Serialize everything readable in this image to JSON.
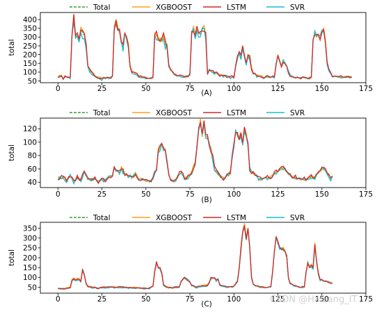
{
  "watermark": "CSDN @HaiLang_IT",
  "chart_data": [
    {
      "type": "line",
      "caption": "(A)",
      "ylabel": "total",
      "xlim": [
        -10,
        175
      ],
      "ylim": [
        40,
        440
      ],
      "xticks": [
        0,
        25,
        50,
        75,
        100,
        125,
        150,
        175
      ],
      "yticks": [
        50,
        100,
        150,
        200,
        250,
        300,
        350,
        400
      ],
      "legend": "top-center",
      "series": [
        {
          "name": "Total",
          "color": "#2ca02c",
          "dash": "4,2"
        },
        {
          "name": "XGBOOST",
          "color": "#ff9f1c",
          "dash": ""
        },
        {
          "name": "LSTM",
          "color": "#d62728",
          "dash": ""
        },
        {
          "name": "SVR",
          "color": "#17becf",
          "dash": ""
        }
      ],
      "profile": [
        [
          0,
          75
        ],
        [
          2,
          80
        ],
        [
          3,
          60
        ],
        [
          4,
          72
        ],
        [
          6,
          68
        ],
        [
          7,
          70
        ],
        [
          8,
          300
        ],
        [
          9,
          420
        ],
        [
          10,
          310
        ],
        [
          11,
          300
        ],
        [
          12,
          270
        ],
        [
          13,
          350
        ],
        [
          14,
          320
        ],
        [
          15,
          310
        ],
        [
          16,
          240
        ],
        [
          17,
          135
        ],
        [
          18,
          110
        ],
        [
          20,
          90
        ],
        [
          21,
          75
        ],
        [
          23,
          70
        ],
        [
          25,
          60
        ],
        [
          27,
          70
        ],
        [
          29,
          65
        ],
        [
          31,
          75
        ],
        [
          32,
          355
        ],
        [
          33,
          395
        ],
        [
          34,
          350
        ],
        [
          35,
          330
        ],
        [
          36,
          260
        ],
        [
          37,
          240
        ],
        [
          38,
          320
        ],
        [
          39,
          300
        ],
        [
          40,
          250
        ],
        [
          41,
          130
        ],
        [
          42,
          105
        ],
        [
          44,
          95
        ],
        [
          46,
          75
        ],
        [
          48,
          70
        ],
        [
          50,
          65
        ],
        [
          52,
          65
        ],
        [
          54,
          70
        ],
        [
          55,
          300
        ],
        [
          56,
          310
        ],
        [
          57,
          280
        ],
        [
          58,
          285
        ],
        [
          59,
          270
        ],
        [
          60,
          300
        ],
        [
          61,
          260
        ],
        [
          62,
          240
        ],
        [
          63,
          135
        ],
        [
          64,
          110
        ],
        [
          66,
          90
        ],
        [
          68,
          75
        ],
        [
          70,
          80
        ],
        [
          72,
          70
        ],
        [
          74,
          75
        ],
        [
          75,
          85
        ],
        [
          76,
          320
        ],
        [
          77,
          340
        ],
        [
          78,
          300
        ],
        [
          79,
          340
        ],
        [
          80,
          330
        ],
        [
          81,
          310
        ],
        [
          82,
          345
        ],
        [
          83,
          350
        ],
        [
          84,
          300
        ],
        [
          85,
          85
        ],
        [
          86,
          110
        ],
        [
          88,
          100
        ],
        [
          90,
          95
        ],
        [
          92,
          80
        ],
        [
          94,
          80
        ],
        [
          96,
          75
        ],
        [
          98,
          70
        ],
        [
          100,
          75
        ],
        [
          101,
          140
        ],
        [
          102,
          190
        ],
        [
          103,
          200
        ],
        [
          104,
          180
        ],
        [
          105,
          230
        ],
        [
          106,
          190
        ],
        [
          107,
          140
        ],
        [
          108,
          200
        ],
        [
          109,
          180
        ],
        [
          110,
          120
        ],
        [
          111,
          95
        ],
        [
          113,
          80
        ],
        [
          115,
          75
        ],
        [
          117,
          70
        ],
        [
          119,
          75
        ],
        [
          121,
          70
        ],
        [
          123,
          75
        ],
        [
          124,
          140
        ],
        [
          125,
          190
        ],
        [
          126,
          160
        ],
        [
          127,
          130
        ],
        [
          128,
          165
        ],
        [
          129,
          150
        ],
        [
          130,
          135
        ],
        [
          131,
          100
        ],
        [
          132,
          80
        ],
        [
          134,
          70
        ],
        [
          136,
          70
        ],
        [
          138,
          65
        ],
        [
          140,
          70
        ],
        [
          142,
          65
        ],
        [
          144,
          70
        ],
        [
          145,
          280
        ],
        [
          146,
          320
        ],
        [
          147,
          300
        ],
        [
          148,
          300
        ],
        [
          149,
          295
        ],
        [
          150,
          320
        ],
        [
          151,
          330
        ],
        [
          152,
          280
        ],
        [
          153,
          160
        ],
        [
          154,
          110
        ],
        [
          155,
          90
        ],
        [
          156,
          75
        ],
        [
          167,
          70
        ]
      ],
      "bias": [
        0,
        12,
        6,
        -8
      ],
      "jitter": [
        0,
        14,
        20,
        22
      ]
    },
    {
      "type": "line",
      "caption": "(B)",
      "ylabel": "total",
      "xlim": [
        -10,
        175
      ],
      "ylim": [
        32,
        136
      ],
      "xticks": [
        0,
        25,
        50,
        75,
        100,
        125,
        150,
        175
      ],
      "yticks": [
        40,
        60,
        80,
        100,
        120
      ],
      "legend": "top-center",
      "series": [
        {
          "name": "Total",
          "color": "#2ca02c",
          "dash": "4,2"
        },
        {
          "name": "XGBOOST",
          "color": "#ff9f1c",
          "dash": ""
        },
        {
          "name": "LSTM",
          "color": "#d62728",
          "dash": ""
        },
        {
          "name": "SVR",
          "color": "#17becf",
          "dash": ""
        }
      ],
      "profile": [
        [
          0,
          45
        ],
        [
          3,
          48
        ],
        [
          5,
          42
        ],
        [
          7,
          50
        ],
        [
          9,
          40
        ],
        [
          11,
          47
        ],
        [
          13,
          43
        ],
        [
          15,
          55
        ],
        [
          17,
          44
        ],
        [
          19,
          42
        ],
        [
          21,
          46
        ],
        [
          23,
          40
        ],
        [
          25,
          44
        ],
        [
          27,
          42
        ],
        [
          29,
          48
        ],
        [
          31,
          50
        ],
        [
          32,
          62
        ],
        [
          33,
          58
        ],
        [
          35,
          55
        ],
        [
          36,
          60
        ],
        [
          38,
          52
        ],
        [
          40,
          50
        ],
        [
          42,
          47
        ],
        [
          44,
          52
        ],
        [
          46,
          45
        ],
        [
          48,
          44
        ],
        [
          50,
          42
        ],
        [
          52,
          40
        ],
        [
          54,
          45
        ],
        [
          56,
          60
        ],
        [
          57,
          85
        ],
        [
          58,
          92
        ],
        [
          59,
          95
        ],
        [
          60,
          90
        ],
        [
          61,
          88
        ],
        [
          62,
          70
        ],
        [
          63,
          50
        ],
        [
          64,
          45
        ],
        [
          66,
          40
        ],
        [
          68,
          48
        ],
        [
          70,
          55
        ],
        [
          72,
          45
        ],
        [
          74,
          48
        ],
        [
          76,
          55
        ],
        [
          78,
          70
        ],
        [
          79,
          95
        ],
        [
          80,
          120
        ],
        [
          81,
          132
        ],
        [
          82,
          110
        ],
        [
          83,
          128
        ],
        [
          84,
          110
        ],
        [
          85,
          105
        ],
        [
          86,
          95
        ],
        [
          87,
          88
        ],
        [
          88,
          75
        ],
        [
          89,
          60
        ],
        [
          90,
          55
        ],
        [
          92,
          48
        ],
        [
          94,
          45
        ],
        [
          96,
          50
        ],
        [
          98,
          55
        ],
        [
          99,
          75
        ],
        [
          100,
          95
        ],
        [
          101,
          118
        ],
        [
          102,
          112
        ],
        [
          103,
          105
        ],
        [
          104,
          110
        ],
        [
          105,
          95
        ],
        [
          106,
          120
        ],
        [
          107,
          110
        ],
        [
          108,
          95
        ],
        [
          109,
          60
        ],
        [
          110,
          55
        ],
        [
          112,
          52
        ],
        [
          114,
          45
        ],
        [
          116,
          44
        ],
        [
          118,
          48
        ],
        [
          120,
          45
        ],
        [
          122,
          50
        ],
        [
          124,
          55
        ],
        [
          126,
          58
        ],
        [
          128,
          62
        ],
        [
          130,
          55
        ],
        [
          132,
          50
        ],
        [
          134,
          48
        ],
        [
          136,
          46
        ],
        [
          138,
          44
        ],
        [
          140,
          45
        ],
        [
          142,
          44
        ],
        [
          144,
          48
        ],
        [
          146,
          46
        ],
        [
          148,
          55
        ],
        [
          150,
          60
        ],
        [
          152,
          58
        ],
        [
          154,
          50
        ],
        [
          155,
          45
        ],
        [
          156,
          47
        ]
      ],
      "bias": [
        0,
        1.5,
        2,
        -1
      ],
      "jitter": [
        0,
        3,
        4.5,
        4
      ]
    },
    {
      "type": "line",
      "caption": "(C)",
      "ylabel": "total",
      "xlim": [
        -10,
        175
      ],
      "ylim": [
        20,
        380
      ],
      "xticks": [
        0,
        25,
        50,
        75,
        100,
        125,
        150,
        175
      ],
      "yticks": [
        50,
        100,
        150,
        200,
        250,
        300,
        350
      ],
      "legend": "top-center",
      "series": [
        {
          "name": "Total",
          "color": "#2ca02c",
          "dash": "4,2"
        },
        {
          "name": "XGBOOST",
          "color": "#ff9f1c",
          "dash": ""
        },
        {
          "name": "LSTM",
          "color": "#d62728",
          "dash": ""
        },
        {
          "name": "SVR",
          "color": "#17becf",
          "dash": ""
        }
      ],
      "profile": [
        [
          0,
          45
        ],
        [
          3,
          40
        ],
        [
          5,
          45
        ],
        [
          7,
          50
        ],
        [
          8,
          85
        ],
        [
          9,
          95
        ],
        [
          10,
          88
        ],
        [
          11,
          90
        ],
        [
          12,
          92
        ],
        [
          13,
          80
        ],
        [
          14,
          140
        ],
        [
          15,
          110
        ],
        [
          16,
          70
        ],
        [
          17,
          55
        ],
        [
          19,
          50
        ],
        [
          21,
          48
        ],
        [
          23,
          45
        ],
        [
          25,
          50
        ],
        [
          27,
          48
        ],
        [
          30,
          52
        ],
        [
          32,
          50
        ],
        [
          34,
          48
        ],
        [
          36,
          52
        ],
        [
          38,
          50
        ],
        [
          40,
          48
        ],
        [
          42,
          45
        ],
        [
          44,
          48
        ],
        [
          46,
          45
        ],
        [
          48,
          43
        ],
        [
          50,
          45
        ],
        [
          52,
          45
        ],
        [
          54,
          55
        ],
        [
          55,
          130
        ],
        [
          56,
          170
        ],
        [
          57,
          150
        ],
        [
          58,
          145
        ],
        [
          59,
          120
        ],
        [
          60,
          60
        ],
        [
          61,
          55
        ],
        [
          63,
          48
        ],
        [
          65,
          45
        ],
        [
          67,
          50
        ],
        [
          69,
          52
        ],
        [
          70,
          80
        ],
        [
          71,
          90
        ],
        [
          72,
          95
        ],
        [
          73,
          92
        ],
        [
          74,
          85
        ],
        [
          75,
          75
        ],
        [
          76,
          60
        ],
        [
          77,
          55
        ],
        [
          79,
          50
        ],
        [
          81,
          55
        ],
        [
          83,
          58
        ],
        [
          85,
          60
        ],
        [
          86,
          75
        ],
        [
          87,
          95
        ],
        [
          88,
          100
        ],
        [
          89,
          95
        ],
        [
          90,
          85
        ],
        [
          91,
          90
        ],
        [
          92,
          60
        ],
        [
          94,
          55
        ],
        [
          96,
          50
        ],
        [
          98,
          52
        ],
        [
          100,
          55
        ],
        [
          102,
          80
        ],
        [
          103,
          150
        ],
        [
          104,
          250
        ],
        [
          105,
          330
        ],
        [
          106,
          360
        ],
        [
          107,
          290
        ],
        [
          108,
          340
        ],
        [
          109,
          250
        ],
        [
          110,
          100
        ],
        [
          111,
          65
        ],
        [
          113,
          55
        ],
        [
          115,
          50
        ],
        [
          117,
          50
        ],
        [
          119,
          48
        ],
        [
          121,
          55
        ],
        [
          122,
          130
        ],
        [
          123,
          230
        ],
        [
          124,
          300
        ],
        [
          125,
          270
        ],
        [
          126,
          250
        ],
        [
          127,
          240
        ],
        [
          128,
          245
        ],
        [
          129,
          230
        ],
        [
          130,
          200
        ],
        [
          131,
          95
        ],
        [
          132,
          70
        ],
        [
          134,
          60
        ],
        [
          136,
          55
        ],
        [
          138,
          50
        ],
        [
          140,
          52
        ],
        [
          141,
          120
        ],
        [
          142,
          170
        ],
        [
          143,
          150
        ],
        [
          144,
          160
        ],
        [
          145,
          145
        ],
        [
          146,
          270
        ],
        [
          147,
          180
        ],
        [
          148,
          120
        ],
        [
          149,
          90
        ],
        [
          150,
          85
        ],
        [
          152,
          80
        ],
        [
          154,
          75
        ],
        [
          155,
          72
        ],
        [
          156,
          70
        ]
      ],
      "bias": [
        0,
        6,
        4,
        -5
      ],
      "jitter": [
        0,
        8,
        10,
        12
      ]
    }
  ]
}
